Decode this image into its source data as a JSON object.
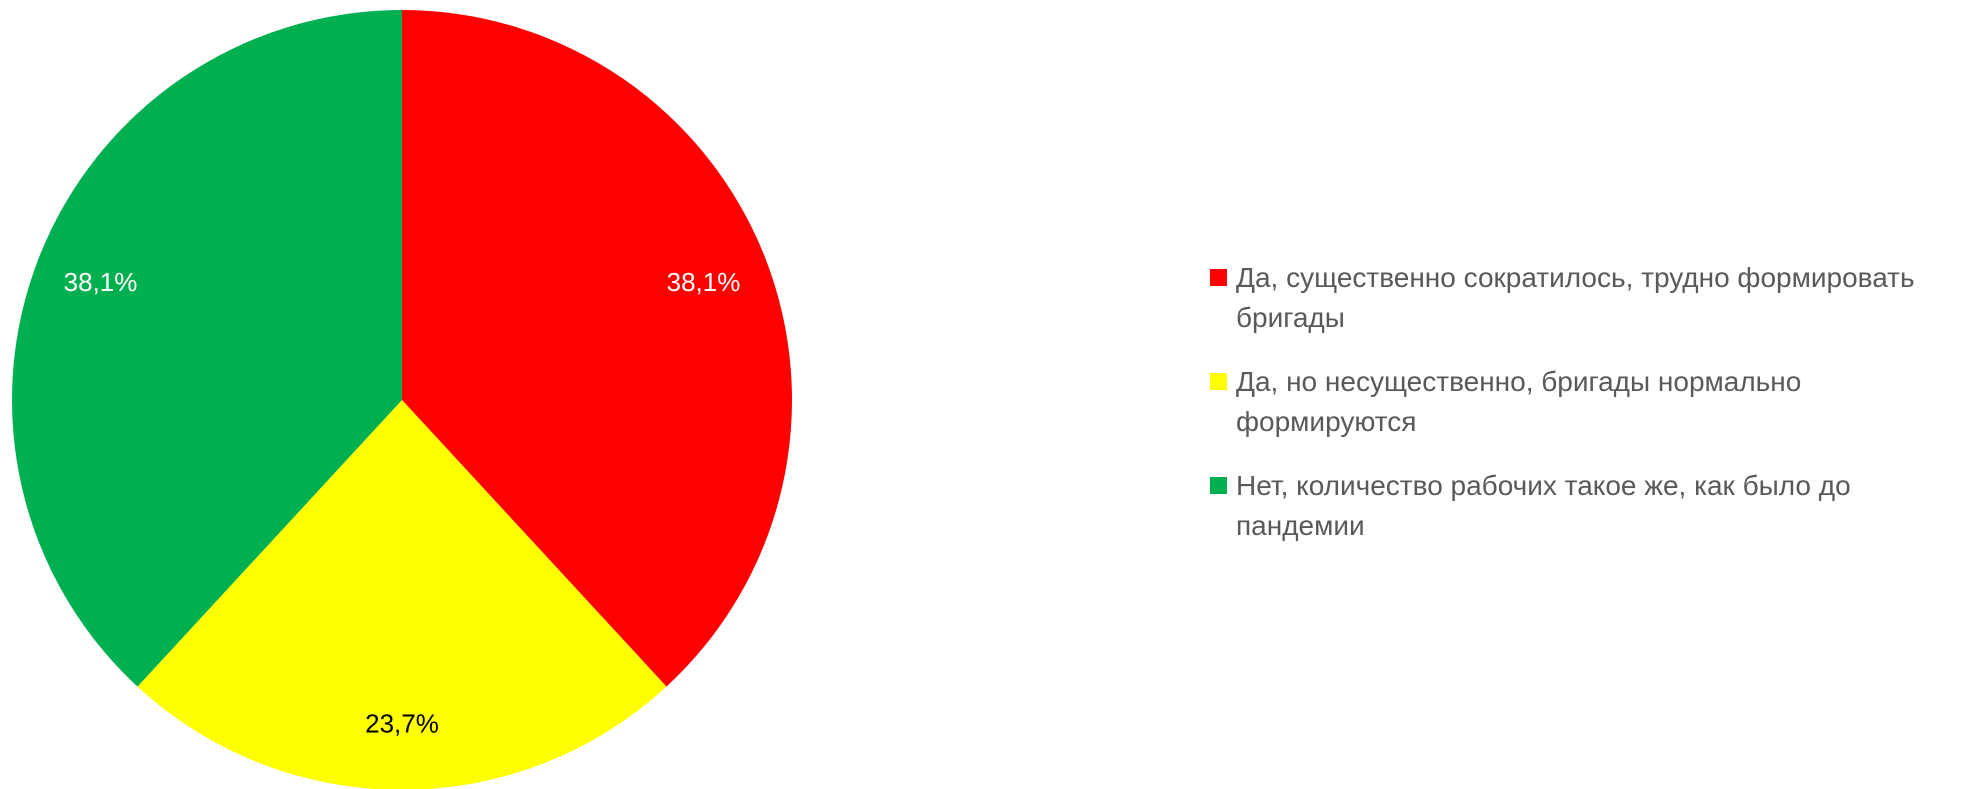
{
  "chart_data": {
    "type": "pie",
    "start_angle_deg": 0,
    "direction": "clockwise",
    "legend_position": "right",
    "slices": [
      {
        "label": "Да, существенно сократилось, трудно формировать бригады",
        "value": 38.1,
        "display": "38,1%",
        "color": "#ff0000",
        "label_color": "#ffffff"
      },
      {
        "label": "Да, но несущественно, бригады нормально формируются",
        "value": 23.7,
        "display": "23,7%",
        "color": "#ffff00",
        "label_color": "#000000"
      },
      {
        "label": "Нет, количество рабочих такое же, как было до пандемии",
        "value": 38.1,
        "display": "38,1%",
        "color": "#00b050",
        "label_color": "#ffffff"
      }
    ]
  }
}
